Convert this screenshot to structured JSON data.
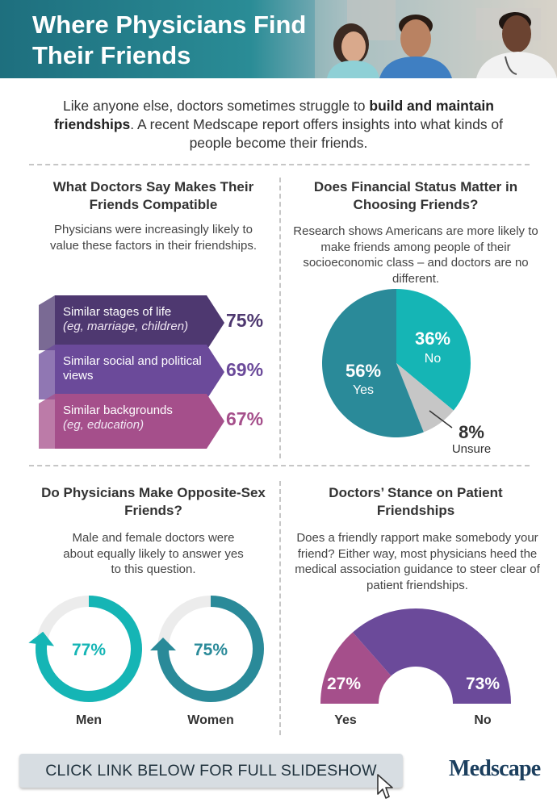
{
  "header": {
    "title": "Where Physicians Find Their Friends"
  },
  "intro": {
    "text_before": "Like anyone else, doctors sometimes struggle to ",
    "text_bold": "build and maintain friendships",
    "text_after": ". A recent Medscape report offers insights into what kinds of people become their friends."
  },
  "colors": {
    "teal": "#15b5b5",
    "dark_teal": "#2a8a99",
    "gray": "#c6c6c6",
    "purple_dark": "#4e3870",
    "purple": "#6b4a9a",
    "pink_purple": "#a54f8b"
  },
  "compatibility": {
    "title": "What Doctors Say Makes Their Friends Compatible",
    "text": "Physicians were increasingly likely to value these factors in their friendships."
  },
  "financial": {
    "title": "Does Financial Status Matter in Choosing Friends?",
    "text": "Research shows Americans are more likely to make friends among people of their socioeconomic class – and doctors are no different."
  },
  "opposite_sex": {
    "title": "Do Physicians Make Opposite-Sex Friends?",
    "text": "Male and female doctors were about equally likely to answer yes to this question."
  },
  "patient": {
    "title": "Doctors’ Stance on Patient Friendships",
    "text": "Does a friendly rapport make somebody your friend? Either way, most physicians heed the medical association guidance to steer clear of patient friendships."
  },
  "footer": {
    "cta": "CLICK LINK BELOW FOR FULL SLIDESHOW",
    "logo": "Medscape"
  },
  "chart_data": [
    {
      "type": "bar",
      "title": "What Doctors Say Makes Their Friends Compatible",
      "categories": [
        {
          "label": "Similar stages of life",
          "sublabel": "(eg, marriage, children)"
        },
        {
          "label": "Similar social and political views",
          "sublabel": ""
        },
        {
          "label": "Similar backgrounds",
          "sublabel": "(eg, education)"
        }
      ],
      "values": [
        75,
        69,
        67
      ],
      "value_labels": [
        "75%",
        "69%",
        "67%"
      ],
      "colors": [
        "#4e3870",
        "#6b4a9a",
        "#a54f8b"
      ]
    },
    {
      "type": "pie",
      "title": "Does Financial Status Matter in Choosing Friends?",
      "slices": [
        {
          "label": "No",
          "value": 36,
          "display": "36%",
          "color": "#15b5b5"
        },
        {
          "label": "Unsure",
          "value": 8,
          "display": "8%",
          "color": "#c6c6c6"
        },
        {
          "label": "Yes",
          "value": 56,
          "display": "56%",
          "color": "#2a8a99"
        }
      ]
    },
    {
      "type": "pie",
      "title": "Do Physicians Make Opposite-Sex Friends?",
      "series": [
        {
          "name": "Men",
          "value": 77,
          "display": "77%",
          "color": "#15b5b5"
        },
        {
          "name": "Women",
          "value": 75,
          "display": "75%",
          "color": "#2a8a99"
        }
      ]
    },
    {
      "type": "pie",
      "title": "Doctors’ Stance on Patient Friendships",
      "slices": [
        {
          "label": "Yes",
          "value": 27,
          "display": "27%",
          "color": "#a54f8b"
        },
        {
          "label": "No",
          "value": 73,
          "display": "73%",
          "color": "#6b4a9a"
        }
      ]
    }
  ]
}
